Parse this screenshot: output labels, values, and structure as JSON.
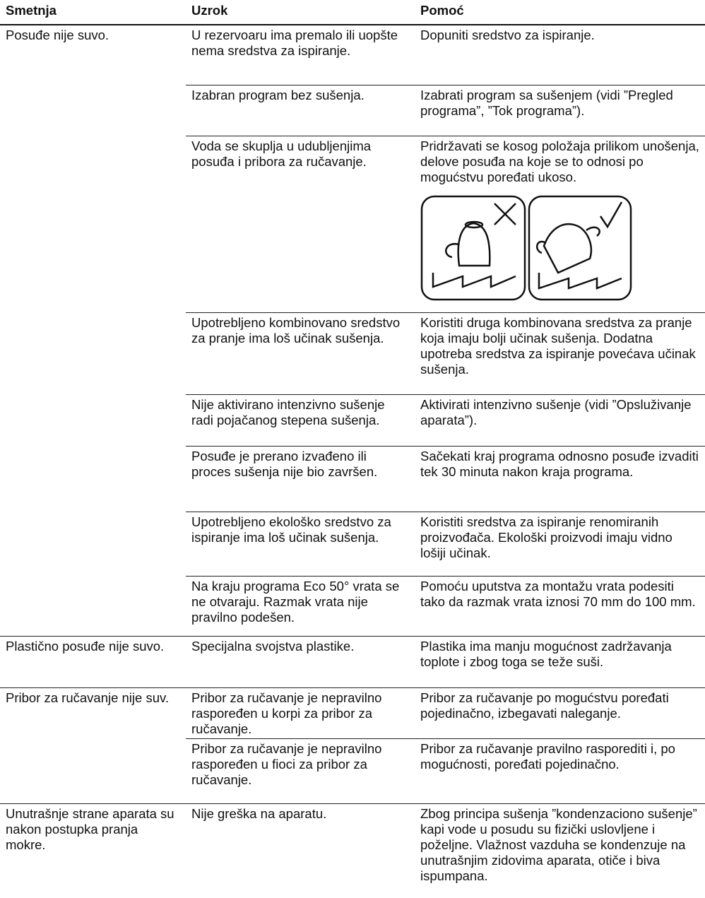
{
  "header": [
    "Smetnja",
    "Uzrok",
    "Pomoć"
  ],
  "groups": [
    {
      "problem": "Posuđe nije suvo.",
      "rows": [
        [
          "U rezervoaru ima premalo ili uopšte nema sredstva za ispiranje.",
          "Dopuniti sredstvo za ispiranje."
        ],
        [
          "Izabran program bez sušenja.",
          "Izabrati program sa sušenjem (vidi ”Pregled programa”, ”Tok programa”)."
        ],
        [
          "Voda se skuplja u udubljenjima posuđa i pribora za ručavanje.",
          "Pridržavati se kosog položaja prilikom unošenja, delove posuđa na koje se to odnosi po mogućstvu poređati ukoso."
        ],
        [
          "Upotrebljeno kombinovano sredstvo za pranje ima loš učinak sušenja.",
          "Koristiti druga kombinovana sredstva za pranje koja imaju bolji učinak sušenja. Dodatna upotreba sredstva za ispiranje povećava učinak sušenja."
        ],
        [
          "Nije aktivirano intenzivno sušenje radi pojačanog stepena sušenja.",
          "Aktivirati intenzivno sušenje (vidi ”Opsluživanje aparata”)."
        ],
        [
          "Posuđe je prerano izvađeno ili proces sušenja nije bio završen.",
          "Sačekati kraj programa odnosno posuđe izvaditi tek 30 minuta nakon kraja programa."
        ],
        [
          "Upotrebljeno ekološko sredstvo za ispiranje ima loš učinak sušenja.",
          "Koristiti sredstva za ispiranje renomiranih proizvođača. Ekološki proizvodi imaju vidno lošiji učinak."
        ],
        [
          "Na kraju programa Eco 50° vrata se ne otvaraju. Razmak vrata nije pravilno podešen.",
          "Pomoću uputstva za montažu vrata podesiti tako da razmak vrata iznosi 70 mm do 100 mm."
        ]
      ]
    },
    {
      "problem": "Plastično posuđe nije suvo.",
      "rows": [
        [
          "Specijalna svojstva plastike.",
          "Plastika ima manju mogućnost zadržavanja toplote i zbog toga se teže suši."
        ]
      ]
    },
    {
      "problem": "Pribor za ručavanje nije suv.",
      "rows": [
        [
          "Pribor za ručavanje je nepravilno raspoređen u korpi za pribor za ručavanje.",
          "Pribor za ručavanje po mogućstvu poređati pojedinačno, izbegavati naleganje."
        ],
        [
          "Pribor za ručavanje je nepravilno raspoređen u fioci za pribor za ručavanje.",
          "Pribor za ručavanje pravilno rasporediti i, po mogućnosti, poređati pojedinačno."
        ]
      ]
    },
    {
      "problem": "Unutrašnje strane aparata su nakon postupka pranja mokre.",
      "rows": [
        [
          "Nije greška na aparatu.",
          "Zbog principa sušenja ”kondenzaciono sušenje” kapi vode u posudu su fizički uslovljene i poželjne. Vlažnost vazduha se kondenzuje na unutrašnjim zidovima aparata, otiče i biva ispumpana."
        ]
      ]
    }
  ]
}
